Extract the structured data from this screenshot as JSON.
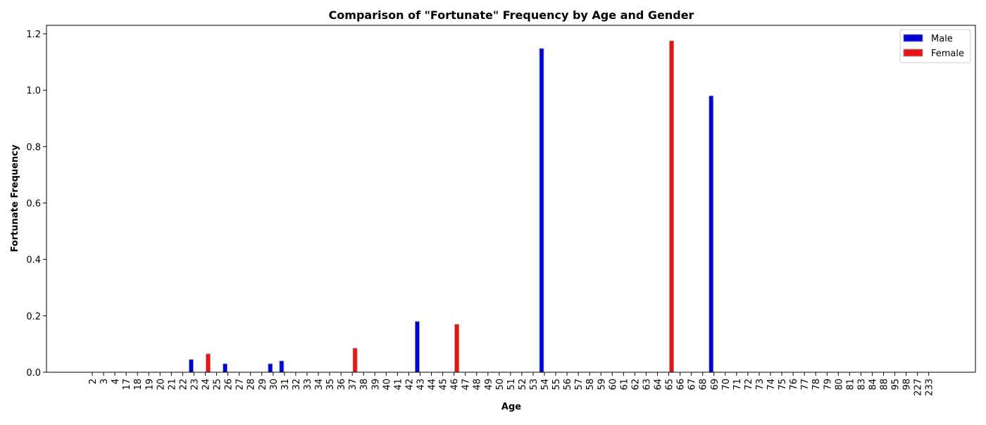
{
  "chart_data": {
    "type": "bar",
    "title": "Comparison of \"Fortunate\" Frequency by Age and Gender",
    "xlabel": "Age",
    "ylabel": "Fortunate Frequency",
    "ylim": [
      0,
      1.23
    ],
    "yticks": [
      "0.0",
      "0.2",
      "0.4",
      "0.6",
      "0.8",
      "1.0",
      "1.2"
    ],
    "ytick_values": [
      0,
      0.2,
      0.4,
      0.6,
      0.8,
      1.0,
      1.2
    ],
    "grid": false,
    "legend_position": "top-right",
    "categories": [
      "2",
      "3",
      "4",
      "17",
      "18",
      "19",
      "20",
      "21",
      "22",
      "23",
      "24",
      "25",
      "26",
      "27",
      "28",
      "29",
      "30",
      "31",
      "32",
      "33",
      "34",
      "35",
      "36",
      "37",
      "38",
      "39",
      "40",
      "41",
      "42",
      "43",
      "44",
      "45",
      "46",
      "47",
      "48",
      "49",
      "50",
      "51",
      "52",
      "53",
      "54",
      "55",
      "56",
      "57",
      "58",
      "59",
      "60",
      "61",
      "62",
      "63",
      "64",
      "65",
      "66",
      "67",
      "68",
      "69",
      "70",
      "71",
      "72",
      "73",
      "74",
      "75",
      "76",
      "77",
      "78",
      "79",
      "80",
      "81",
      "83",
      "84",
      "88",
      "95",
      "98",
      "227",
      "233"
    ],
    "series": [
      {
        "name": "Male",
        "color": "#0000dd",
        "values": [
          0,
          0,
          0,
          0,
          0,
          0,
          0,
          0,
          0,
          0.045,
          0,
          0,
          0.03,
          0,
          0,
          0,
          0.03,
          0.04,
          0,
          0,
          0,
          0,
          0,
          0,
          0,
          0,
          0,
          0,
          0,
          0.18,
          0,
          0,
          0,
          0,
          0,
          0,
          0,
          0,
          0,
          0,
          1.148,
          0,
          0,
          0,
          0,
          0,
          0,
          0,
          0,
          0,
          0,
          0,
          0,
          0,
          0,
          0.98,
          0,
          0,
          0,
          0,
          0,
          0,
          0,
          0,
          0,
          0,
          0,
          0,
          0,
          0,
          0,
          0,
          0,
          0,
          0
        ]
      },
      {
        "name": "Female",
        "color": "#ee1111",
        "values": [
          0,
          0,
          0,
          0,
          0,
          0,
          0,
          0,
          0,
          0,
          0.065,
          0,
          0,
          0,
          0,
          0,
          0,
          0,
          0,
          0,
          0,
          0,
          0,
          0.085,
          0,
          0,
          0,
          0,
          0,
          0,
          0,
          0,
          0.17,
          0,
          0,
          0,
          0,
          0,
          0,
          0,
          0,
          0,
          0,
          0,
          0,
          0,
          0,
          0,
          0,
          0,
          0,
          1.175,
          0,
          0,
          0,
          0,
          0,
          0,
          0,
          0,
          0,
          0,
          0,
          0,
          0,
          0,
          0,
          0,
          0,
          0,
          0,
          0,
          0,
          0,
          0
        ]
      }
    ]
  }
}
